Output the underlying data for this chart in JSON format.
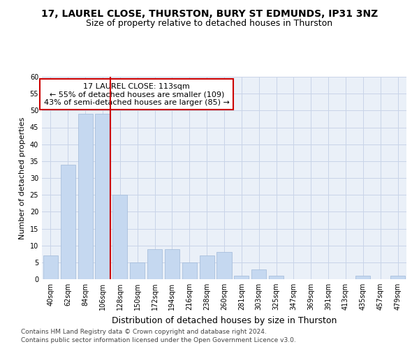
{
  "title1": "17, LAUREL CLOSE, THURSTON, BURY ST EDMUNDS, IP31 3NZ",
  "title2": "Size of property relative to detached houses in Thurston",
  "xlabel": "Distribution of detached houses by size in Thurston",
  "ylabel": "Number of detached properties",
  "categories": [
    "40sqm",
    "62sqm",
    "84sqm",
    "106sqm",
    "128sqm",
    "150sqm",
    "172sqm",
    "194sqm",
    "216sqm",
    "238sqm",
    "260sqm",
    "281sqm",
    "303sqm",
    "325sqm",
    "347sqm",
    "369sqm",
    "391sqm",
    "413sqm",
    "435sqm",
    "457sqm",
    "479sqm"
  ],
  "values": [
    7,
    34,
    49,
    49,
    25,
    5,
    9,
    9,
    5,
    7,
    8,
    1,
    3,
    1,
    0,
    0,
    0,
    0,
    1,
    0,
    1
  ],
  "bar_color": "#c5d8f0",
  "bar_edge_color": "#a0b8d8",
  "highlight_line_color": "#cc0000",
  "highlight_line_index": 3,
  "ylim": [
    0,
    60
  ],
  "yticks": [
    0,
    5,
    10,
    15,
    20,
    25,
    30,
    35,
    40,
    45,
    50,
    55,
    60
  ],
  "annotation_title": "17 LAUREL CLOSE: 113sqm",
  "annotation_line1": "← 55% of detached houses are smaller (109)",
  "annotation_line2": "43% of semi-detached houses are larger (85) →",
  "annotation_box_color": "#ffffff",
  "annotation_box_edge": "#cc0000",
  "grid_color": "#c8d4e8",
  "background_color": "#eaf0f8",
  "footer1": "Contains HM Land Registry data © Crown copyright and database right 2024.",
  "footer2": "Contains public sector information licensed under the Open Government Licence v3.0.",
  "title1_fontsize": 10,
  "title2_fontsize": 9,
  "xlabel_fontsize": 9,
  "ylabel_fontsize": 8,
  "tick_fontsize": 7,
  "footer_fontsize": 6.5,
  "annotation_fontsize": 8
}
